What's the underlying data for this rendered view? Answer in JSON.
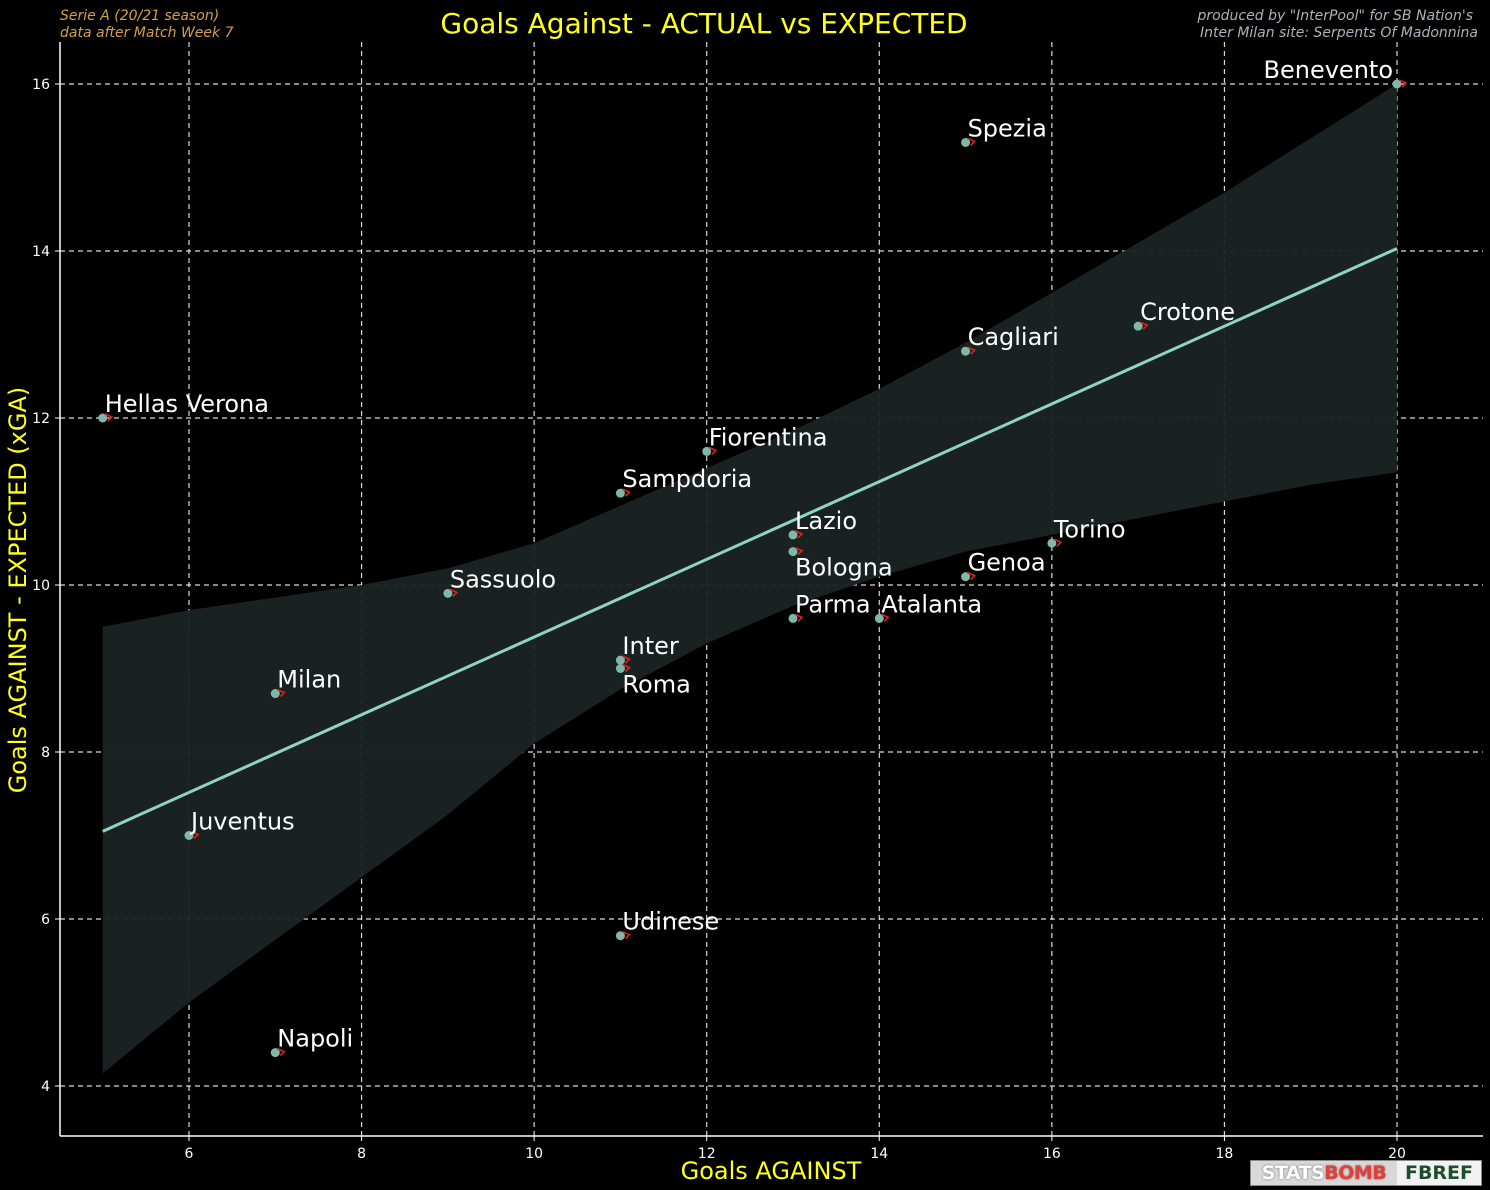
{
  "header": {
    "title": "Goals Against - ACTUAL vs EXPECTED",
    "left_note_1": "Serie A  (20/21 season)",
    "left_note_2": "data after Match Week 7",
    "right_note_1": "produced by \"InterPool\" for SB Nation's",
    "right_note_2": "Inter Milan site: Serpents Of Madonnina"
  },
  "logos": {
    "statsbomb_a": "STATS",
    "statsbomb_b": "BOMB",
    "fbref": "FBREF",
    "statsbomb_icon": "statsbomb-logo",
    "fbref_icon": "fbref-logo"
  },
  "colors": {
    "background": "#000000",
    "title": "#ffff1a",
    "left_note": "#d4a04a",
    "right_note": "#a8b4bd",
    "points": "#7fb8a8",
    "regression": "#8fd3c4",
    "band": "#1a2422",
    "marker": "#e02020",
    "grid": "#ffffff"
  },
  "chart_data": {
    "type": "scatter",
    "xlabel": "Goals AGAINST",
    "ylabel": "Goals AGAINST - EXPECTED (xGA)",
    "xlim": [
      4.5,
      21.0
    ],
    "ylim": [
      3.4,
      16.5
    ],
    "xticks": [
      6,
      8,
      10,
      12,
      14,
      16,
      18,
      20
    ],
    "yticks": [
      4,
      6,
      8,
      10,
      12,
      14,
      16
    ],
    "grid": true,
    "regression": {
      "x": [
        5,
        20
      ],
      "y": [
        7.05,
        14.03
      ]
    },
    "confidence_band": {
      "x": [
        5,
        6,
        7,
        8,
        9,
        10,
        11,
        12,
        13,
        14,
        15,
        16,
        17,
        18,
        19,
        20
      ],
      "upper": [
        9.5,
        9.7,
        9.85,
        10.0,
        10.2,
        10.5,
        10.95,
        11.4,
        11.85,
        12.35,
        12.9,
        13.5,
        14.1,
        14.7,
        15.35,
        16.0
      ],
      "lower": [
        4.15,
        5.0,
        5.75,
        6.5,
        7.25,
        8.1,
        8.75,
        9.3,
        9.75,
        10.1,
        10.4,
        10.6,
        10.8,
        11.0,
        11.2,
        11.35
      ]
    },
    "points": [
      {
        "team": "Benevento",
        "x": 20,
        "y": 16.0,
        "label_pos": "left"
      },
      {
        "team": "Spezia",
        "x": 15,
        "y": 15.3
      },
      {
        "team": "Crotone",
        "x": 17,
        "y": 13.1
      },
      {
        "team": "Cagliari",
        "x": 15,
        "y": 12.8
      },
      {
        "team": "Hellas Verona",
        "x": 5,
        "y": 12.0
      },
      {
        "team": "Fiorentina",
        "x": 12,
        "y": 11.6
      },
      {
        "team": "Sampdoria",
        "x": 11,
        "y": 11.1
      },
      {
        "team": "Lazio",
        "x": 13,
        "y": 10.6
      },
      {
        "team": "Bologna",
        "x": 13,
        "y": 10.4,
        "label_pos": "below"
      },
      {
        "team": "Torino",
        "x": 16,
        "y": 10.5
      },
      {
        "team": "Genoa",
        "x": 15,
        "y": 10.1
      },
      {
        "team": "Sassuolo",
        "x": 9,
        "y": 9.9
      },
      {
        "team": "Parma",
        "x": 13,
        "y": 9.6
      },
      {
        "team": "Atalanta",
        "x": 14,
        "y": 9.6
      },
      {
        "team": "Inter",
        "x": 11,
        "y": 9.1
      },
      {
        "team": "Roma",
        "x": 11,
        "y": 9.0,
        "label_pos": "below"
      },
      {
        "team": "Milan",
        "x": 7,
        "y": 8.7
      },
      {
        "team": "Juventus",
        "x": 6,
        "y": 7.0
      },
      {
        "team": "Udinese",
        "x": 11,
        "y": 5.8
      },
      {
        "team": "Napoli",
        "x": 7,
        "y": 4.4
      }
    ]
  }
}
